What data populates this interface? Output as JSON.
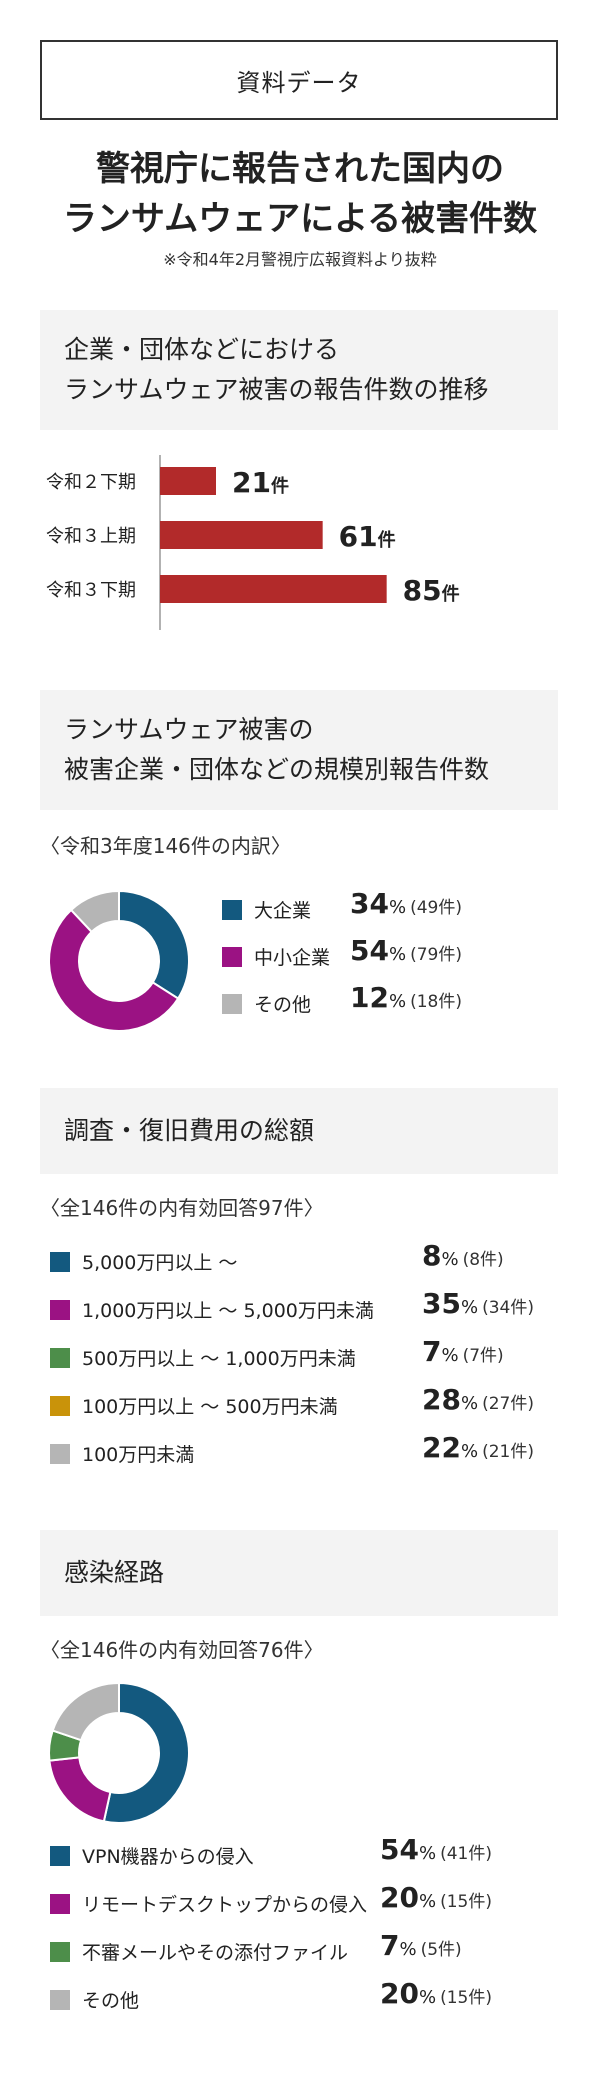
{
  "badge": "資料データ",
  "title_line1": "警視庁に報告された国内の",
  "title_line2": "ランサムウェアによる被害件数",
  "source": "※令和4年2月警視庁広報資料より抜粋",
  "section1": {
    "heading_line1": "企業・団体などにおける",
    "heading_line2": "ランサムウェア被害の報告件数の推移"
  },
  "section2": {
    "heading_line1": "ランサムウェア被害の",
    "heading_line2": "被害企業・団体などの規模別報告件数",
    "sub": "〈令和3年度146件の内訳〉"
  },
  "section3": {
    "heading": "調査・復旧費用の総額",
    "sub": "〈全146件の内有効回答97件〉"
  },
  "section4": {
    "heading": "感染経路",
    "sub": "〈全146件の内有効回答76件〉"
  },
  "chart_data": [
    {
      "type": "bar",
      "orientation": "horizontal",
      "categories": [
        "令和２下期",
        "令和３上期",
        "令和３下期"
      ],
      "values": [
        21,
        61,
        85
      ],
      "value_suffix": "件",
      "color": "#b22a2a",
      "xlim": [
        0,
        120
      ]
    },
    {
      "type": "pie",
      "donut": true,
      "slices": [
        {
          "label": "大企業",
          "percent": 34,
          "percent_text": "34",
          "count_text": "(49件)",
          "color": "#13597f"
        },
        {
          "label": "中小企業",
          "percent": 54,
          "percent_text": "54",
          "count_text": "(79件)",
          "color": "#9b1283"
        },
        {
          "label": "その他",
          "percent": 12,
          "percent_text": "12",
          "count_text": "(18件)",
          "color": "#b5b5b5"
        }
      ]
    },
    {
      "type": "table",
      "rows": [
        {
          "label": "5,000万円以上 ～",
          "percent_text": "8",
          "count_text": "(8件)",
          "color": "#13597f"
        },
        {
          "label": "1,000万円以上 ～ 5,000万円未満",
          "percent_text": "35",
          "count_text": "(34件)",
          "color": "#9b1283"
        },
        {
          "label": "500万円以上 ～ 1,000万円未満",
          "percent_text": "7",
          "count_text": "(7件)",
          "color": "#4d8e4a"
        },
        {
          "label": "100万円以上 ～ 500万円未満",
          "percent_text": "28",
          "count_text": "(27件)",
          "color": "#c9930a"
        },
        {
          "label": "100万円未満",
          "percent_text": "22",
          "count_text": "(21件)",
          "color": "#b5b5b5"
        }
      ]
    },
    {
      "type": "pie",
      "donut": true,
      "slices": [
        {
          "label": "VPN機器からの侵入",
          "percent": 54,
          "percent_text": "54",
          "count_text": "(41件)",
          "color": "#13597f"
        },
        {
          "label": "リモートデスクトップからの侵入",
          "percent": 20,
          "percent_text": "20",
          "count_text": "(15件)",
          "color": "#9b1283"
        },
        {
          "label": "不審メールやその添付ファイル",
          "percent": 7,
          "percent_text": "7",
          "count_text": "(5件)",
          "color": "#4d8e4a"
        },
        {
          "label": "その他",
          "percent": 20,
          "percent_text": "20",
          "count_text": "(15件)",
          "color": "#b5b5b5"
        }
      ]
    }
  ],
  "percent_unit": "%"
}
